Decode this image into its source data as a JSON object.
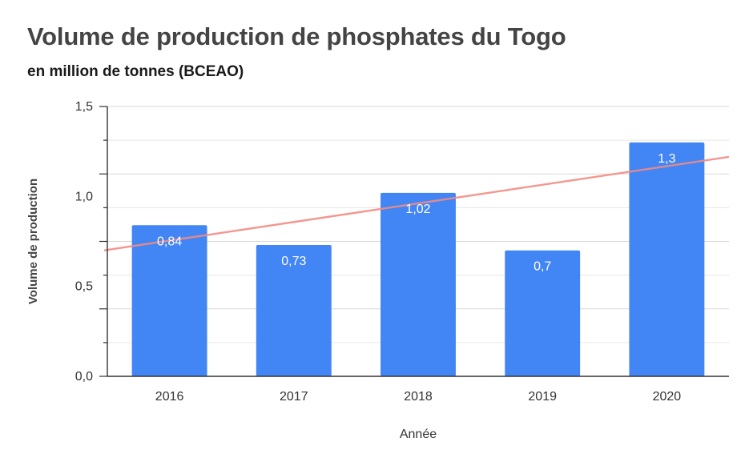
{
  "chart_data": {
    "type": "bar",
    "title": "Volume de production de phosphates du Togo",
    "subtitle": "en million de tonnes (BCEAO)",
    "xlabel": "Année",
    "ylabel": "Volume de production",
    "categories": [
      "2016",
      "2017",
      "2018",
      "2019",
      "2020"
    ],
    "values": [
      0.84,
      0.73,
      1.02,
      0.7,
      1.3
    ],
    "data_labels": [
      "0,84",
      "0,73",
      "1,02",
      "0,7",
      "1,3"
    ],
    "yticks": [
      0,
      0.5,
      1.0,
      1.5
    ],
    "ytick_labels": [
      "0,0",
      "0,5",
      "1,0",
      "1,5"
    ],
    "ylim": [
      0,
      1.5
    ],
    "grid": true,
    "trendline": {
      "type": "linear",
      "start": 0.7,
      "end": 1.22
    },
    "colors": {
      "bar": "#4285f4",
      "trendline": "#f28b82",
      "grid": "#e6e6e6"
    }
  }
}
